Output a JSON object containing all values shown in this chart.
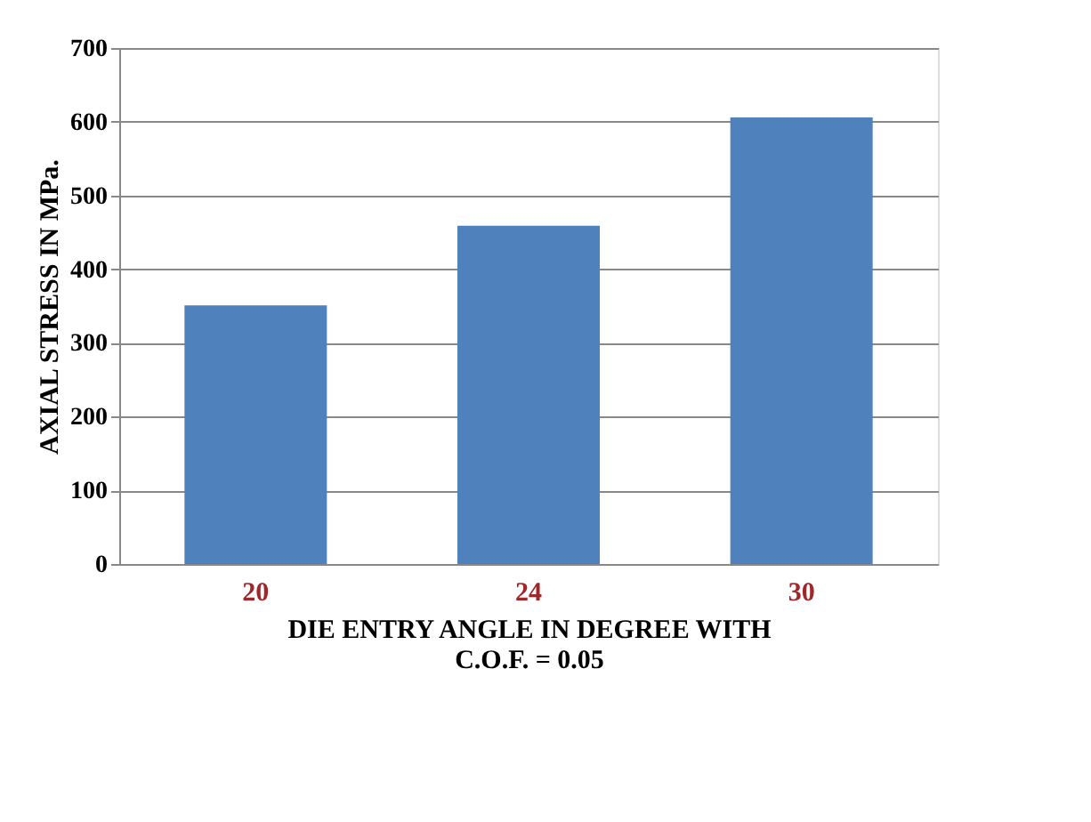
{
  "chart_data": {
    "type": "bar",
    "xlabel": "DIE ENTRY  ANGLE IN DEGREE WITH C.O.F. = 0.05",
    "ylabel": "AXIAL STRESS IN MPa.",
    "categories": [
      "20",
      "24",
      "30"
    ],
    "values": [
      351,
      459,
      606
    ],
    "color": "#4f81bd",
    "ylim": [
      0,
      700
    ],
    "yticks": [
      0,
      100,
      200,
      300,
      400,
      500,
      600,
      700
    ],
    "grid": "y"
  }
}
